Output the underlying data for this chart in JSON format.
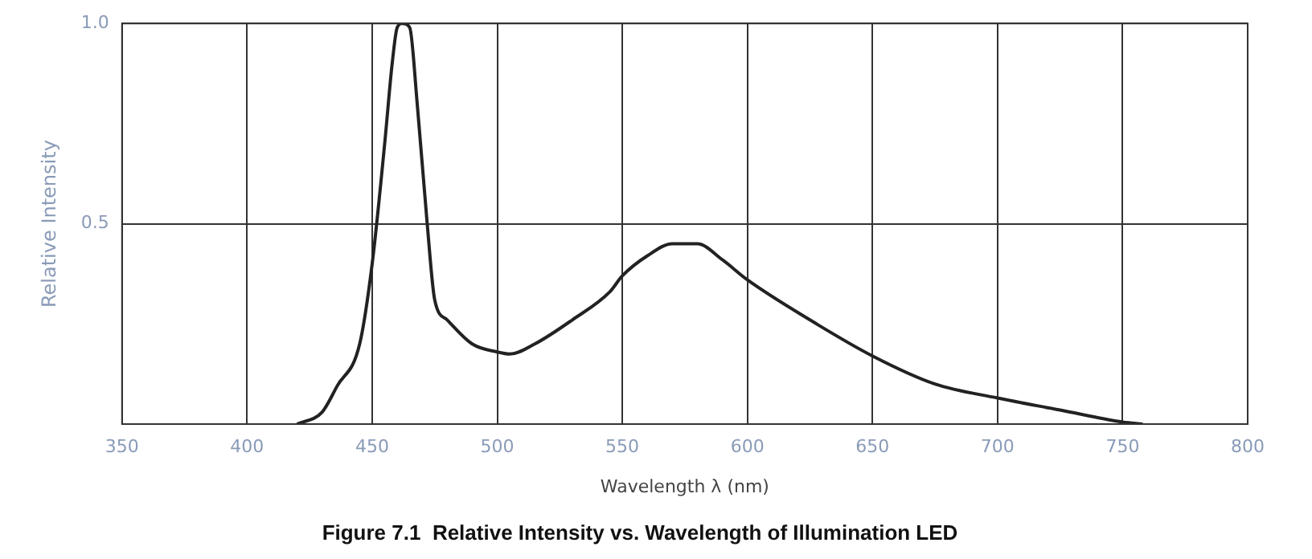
{
  "chart_data": {
    "type": "line",
    "title": "Figure 7.1  Relative Intensity vs. Wavelength of Illumination LED",
    "xlabel": "Wavelength λ (nm)",
    "ylabel": "Relative Intensity",
    "x": [
      420,
      430,
      436,
      445,
      450,
      455,
      458,
      460,
      462,
      465,
      468,
      472,
      475,
      480,
      490,
      500,
      505,
      515,
      530,
      545,
      550,
      560,
      570,
      580,
      590,
      600,
      625,
      650,
      675,
      700,
      725,
      750,
      758
    ],
    "series": [
      {
        "color": "#222222",
        "values": [
          0,
          0.03,
          0.095,
          0.2,
          0.4,
          0.7,
          0.9,
          0.99,
          1.0,
          0.99,
          0.8,
          0.5,
          0.31,
          0.26,
          0.2,
          0.18,
          0.175,
          0.2,
          0.26,
          0.33,
          0.37,
          0.42,
          0.45,
          0.45,
          0.41,
          0.36,
          0.26,
          0.17,
          0.1,
          0.065,
          0.035,
          0.005,
          0
        ]
      }
    ],
    "xlim": [
      350,
      800
    ],
    "xticks": [
      350,
      400,
      450,
      500,
      550,
      600,
      650,
      700,
      750,
      800
    ],
    "ylim": [
      0,
      1
    ],
    "yticks": [
      {
        "value": 0,
        "label": null
      },
      0.5,
      {
        "value": 1,
        "label": "1.0"
      }
    ],
    "grid": true,
    "legend": false,
    "marker": "none",
    "line_style": "solid"
  }
}
